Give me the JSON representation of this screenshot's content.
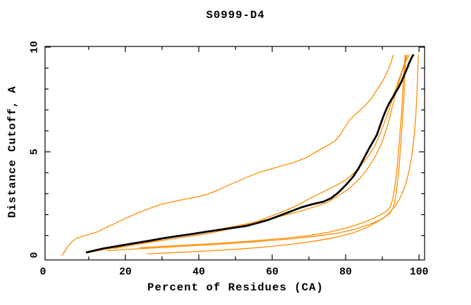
{
  "figure": {
    "background": "#ffffff"
  },
  "chart_data": {
    "type": "line",
    "title": "S0999-D4",
    "xlabel": "Percent of Residues (CA)",
    "ylabel": "Distance Cutoff, A",
    "xlim": [
      0,
      100
    ],
    "ylim": [
      0,
      10
    ],
    "x_major_ticks": [
      0,
      20,
      40,
      60,
      80,
      100
    ],
    "x_minor_ticks": [
      10,
      30,
      50,
      70,
      90
    ],
    "y_major_ticks": [
      0,
      5,
      10
    ],
    "y_minor_ticks": [
      1,
      2,
      3,
      4,
      6,
      7,
      8,
      9
    ],
    "x_tick_labels": [
      "0",
      "20",
      "40",
      "60",
      "80",
      "100"
    ],
    "y_tick_labels": [
      "0",
      "5",
      "10"
    ],
    "grid": false,
    "legend": "none",
    "colors": {
      "frame": "#000000",
      "model_curve": "#ff8c00",
      "highlight_curve": "#000000"
    },
    "series": [
      {
        "name": "orange-curve-1",
        "color": "#ff8c00",
        "width": 1.3,
        "points": [
          [
            2.8,
            0.05
          ],
          [
            3.3,
            0.2
          ],
          [
            4.2,
            0.45
          ],
          [
            5.2,
            0.65
          ],
          [
            6.5,
            0.85
          ],
          [
            9,
            1.0
          ],
          [
            12,
            1.15
          ],
          [
            15,
            1.4
          ],
          [
            18,
            1.65
          ],
          [
            21,
            1.9
          ],
          [
            24,
            2.12
          ],
          [
            27,
            2.32
          ],
          [
            30,
            2.5
          ],
          [
            33,
            2.62
          ],
          [
            36,
            2.73
          ],
          [
            39,
            2.83
          ],
          [
            42,
            2.95
          ],
          [
            45,
            3.15
          ],
          [
            48,
            3.4
          ],
          [
            51,
            3.62
          ],
          [
            54,
            3.85
          ],
          [
            57,
            4.05
          ],
          [
            60,
            4.2
          ],
          [
            63,
            4.35
          ],
          [
            66,
            4.5
          ],
          [
            69,
            4.7
          ],
          [
            72,
            5.0
          ],
          [
            75,
            5.3
          ],
          [
            77,
            5.5
          ],
          [
            78.5,
            5.8
          ],
          [
            79.5,
            6.1
          ],
          [
            81,
            6.5
          ],
          [
            83,
            6.85
          ],
          [
            85,
            7.15
          ],
          [
            87,
            7.55
          ],
          [
            88.5,
            7.95
          ],
          [
            90,
            8.35
          ],
          [
            91,
            8.7
          ],
          [
            92,
            9.1
          ],
          [
            92.6,
            9.4
          ],
          [
            93,
            9.62
          ]
        ]
      },
      {
        "name": "orange-curve-2",
        "color": "#ff8c00",
        "width": 1.3,
        "points": [
          [
            9.5,
            0.17
          ],
          [
            14,
            0.33
          ],
          [
            19,
            0.47
          ],
          [
            24,
            0.6
          ],
          [
            29,
            0.74
          ],
          [
            34,
            0.88
          ],
          [
            39,
            1.0
          ],
          [
            44,
            1.15
          ],
          [
            48,
            1.3
          ],
          [
            52,
            1.48
          ],
          [
            56,
            1.68
          ],
          [
            60,
            1.95
          ],
          [
            63,
            2.15
          ],
          [
            67,
            2.45
          ],
          [
            70,
            2.75
          ],
          [
            74,
            3.1
          ],
          [
            78,
            3.45
          ],
          [
            80,
            3.65
          ],
          [
            82,
            3.95
          ],
          [
            84,
            4.3
          ],
          [
            86,
            4.75
          ],
          [
            88,
            5.3
          ],
          [
            89.5,
            5.9
          ],
          [
            91,
            6.6
          ],
          [
            92,
            7.1
          ],
          [
            93,
            7.7
          ],
          [
            94,
            8.2
          ],
          [
            95,
            8.7
          ],
          [
            95.8,
            9.1
          ],
          [
            96.4,
            9.4
          ],
          [
            96.8,
            9.62
          ]
        ]
      },
      {
        "name": "orange-curve-3",
        "color": "#ff8c00",
        "width": 1.3,
        "points": [
          [
            17,
            0.38
          ],
          [
            22,
            0.55
          ],
          [
            27,
            0.72
          ],
          [
            32,
            0.9
          ],
          [
            36,
            1.02
          ],
          [
            40,
            1.12
          ],
          [
            44,
            1.25
          ],
          [
            48,
            1.38
          ],
          [
            52,
            1.52
          ],
          [
            56,
            1.66
          ],
          [
            60,
            1.82
          ],
          [
            64,
            2.0
          ],
          [
            68,
            2.18
          ],
          [
            72,
            2.4
          ],
          [
            75,
            2.58
          ],
          [
            78,
            2.9
          ],
          [
            81,
            3.25
          ],
          [
            84,
            3.75
          ],
          [
            86,
            4.2
          ],
          [
            88,
            4.75
          ],
          [
            90,
            5.5
          ],
          [
            91.5,
            6.3
          ],
          [
            92.5,
            7.0
          ],
          [
            93.5,
            7.7
          ],
          [
            94.5,
            8.3
          ],
          [
            95.5,
            8.9
          ],
          [
            96.5,
            9.35
          ],
          [
            97.3,
            9.62
          ]
        ]
      },
      {
        "name": "orange-curve-4",
        "color": "#ff8c00",
        "width": 1.3,
        "points": [
          [
            15,
            0.28
          ],
          [
            25,
            0.38
          ],
          [
            35,
            0.48
          ],
          [
            45,
            0.58
          ],
          [
            55,
            0.7
          ],
          [
            65,
            0.84
          ],
          [
            72,
            0.97
          ],
          [
            78,
            1.12
          ],
          [
            83,
            1.32
          ],
          [
            87,
            1.57
          ],
          [
            90,
            1.8
          ],
          [
            92,
            2.05
          ],
          [
            93,
            2.32
          ],
          [
            93.6,
            2.8
          ],
          [
            94.1,
            3.5
          ],
          [
            94.6,
            4.4
          ],
          [
            95,
            5.3
          ],
          [
            95.4,
            6.3
          ],
          [
            95.8,
            7.4
          ],
          [
            96.1,
            8.4
          ],
          [
            96.4,
            9.62
          ]
        ]
      },
      {
        "name": "orange-curve-5",
        "color": "#ff8c00",
        "width": 1.3,
        "points": [
          [
            24,
            0.42
          ],
          [
            32,
            0.5
          ],
          [
            40,
            0.58
          ],
          [
            48,
            0.66
          ],
          [
            56,
            0.76
          ],
          [
            64,
            0.88
          ],
          [
            70,
            1.0
          ],
          [
            76,
            1.18
          ],
          [
            81,
            1.4
          ],
          [
            85,
            1.63
          ],
          [
            88,
            1.86
          ],
          [
            90.5,
            2.08
          ],
          [
            92,
            2.32
          ],
          [
            92.8,
            2.7
          ],
          [
            93.4,
            3.3
          ],
          [
            94,
            4.2
          ],
          [
            94.5,
            5.2
          ],
          [
            95,
            6.3
          ],
          [
            95.4,
            7.3
          ],
          [
            95.7,
            8.3
          ],
          [
            96,
            9.1
          ],
          [
            96.2,
            9.62
          ]
        ]
      },
      {
        "name": "orange-curve-6",
        "color": "#ff8c00",
        "width": 1.3,
        "points": [
          [
            26,
            0.13
          ],
          [
            34,
            0.19
          ],
          [
            42,
            0.26
          ],
          [
            50,
            0.34
          ],
          [
            58,
            0.45
          ],
          [
            65,
            0.58
          ],
          [
            71,
            0.72
          ],
          [
            77,
            0.9
          ],
          [
            82,
            1.12
          ],
          [
            86,
            1.4
          ],
          [
            89,
            1.7
          ],
          [
            91.5,
            2.0
          ],
          [
            93.5,
            2.4
          ],
          [
            95,
            2.85
          ],
          [
            96.3,
            3.4
          ],
          [
            97.3,
            4.1
          ],
          [
            98.1,
            4.9
          ],
          [
            98.7,
            5.8
          ],
          [
            99.1,
            6.7
          ],
          [
            99.4,
            7.6
          ],
          [
            99.6,
            8.6
          ],
          [
            99.8,
            9.62
          ]
        ]
      },
      {
        "name": "black-curve",
        "color": "#000000",
        "width": 2.8,
        "points": [
          [
            9.5,
            0.2
          ],
          [
            14,
            0.38
          ],
          [
            18,
            0.5
          ],
          [
            22,
            0.62
          ],
          [
            26,
            0.74
          ],
          [
            30,
            0.86
          ],
          [
            34,
            0.97
          ],
          [
            38,
            1.07
          ],
          [
            42,
            1.18
          ],
          [
            46,
            1.28
          ],
          [
            50,
            1.38
          ],
          [
            53,
            1.46
          ],
          [
            56,
            1.6
          ],
          [
            59,
            1.75
          ],
          [
            62,
            1.95
          ],
          [
            65,
            2.15
          ],
          [
            68,
            2.35
          ],
          [
            71,
            2.5
          ],
          [
            74,
            2.62
          ],
          [
            76,
            2.78
          ],
          [
            78,
            3.05
          ],
          [
            80,
            3.4
          ],
          [
            82,
            3.8
          ],
          [
            83.5,
            4.2
          ],
          [
            85,
            4.7
          ],
          [
            86.5,
            5.2
          ],
          [
            87.5,
            5.5
          ],
          [
            88.5,
            5.8
          ],
          [
            89.5,
            6.3
          ],
          [
            90.3,
            6.7
          ],
          [
            91,
            7.0
          ],
          [
            91.8,
            7.3
          ],
          [
            92.5,
            7.5
          ],
          [
            93.5,
            7.8
          ],
          [
            94.5,
            8.1
          ],
          [
            95.2,
            8.35
          ],
          [
            95.8,
            8.6
          ],
          [
            96.3,
            8.8
          ],
          [
            96.8,
            9.0
          ],
          [
            97.2,
            9.2
          ],
          [
            97.6,
            9.35
          ],
          [
            98,
            9.5
          ],
          [
            98.4,
            9.62
          ]
        ]
      }
    ]
  }
}
